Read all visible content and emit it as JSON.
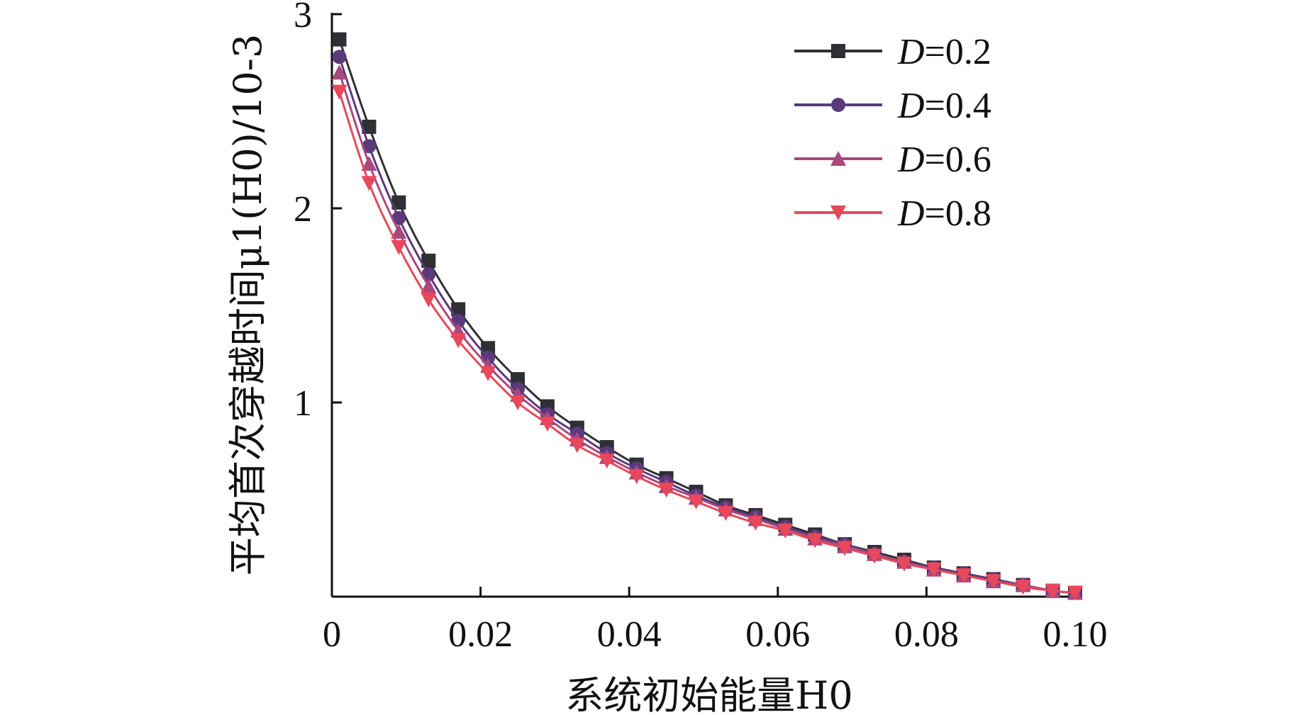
{
  "chart_data": {
    "type": "line",
    "xlabel": "系统初始能量H0",
    "ylabel": "平均首次穿越时间μ1(H0)/10-3",
    "xlim": [
      0,
      0.1
    ],
    "ylim": [
      0,
      3
    ],
    "x_ticks": [
      "0",
      "0.02",
      "0.04",
      "0.06",
      "0.08",
      "0.10"
    ],
    "y_ticks": [
      "1",
      "2",
      "3"
    ],
    "legend_position": "top-right",
    "grid": false,
    "x": [
      0.001,
      0.005,
      0.009,
      0.013,
      0.017,
      0.021,
      0.025,
      0.029,
      0.033,
      0.037,
      0.041,
      0.045,
      0.049,
      0.053,
      0.057,
      0.061,
      0.065,
      0.069,
      0.073,
      0.077,
      0.081,
      0.085,
      0.089,
      0.093,
      0.097,
      0.1
    ],
    "series": [
      {
        "name": "D=0.2",
        "legend_var": "D",
        "legend_value": "=0.2",
        "color": "#2f2f36",
        "marker": "square",
        "values": [
          2.87,
          2.42,
          2.03,
          1.73,
          1.48,
          1.28,
          1.12,
          0.98,
          0.87,
          0.77,
          0.68,
          0.61,
          0.54,
          0.47,
          0.42,
          0.37,
          0.32,
          0.27,
          0.23,
          0.19,
          0.15,
          0.12,
          0.09,
          0.06,
          0.03,
          0.02
        ]
      },
      {
        "name": "D=0.4",
        "legend_var": "D",
        "legend_value": "=0.4",
        "color": "#5b3a7c",
        "marker": "circle",
        "values": [
          2.78,
          2.32,
          1.95,
          1.66,
          1.42,
          1.23,
          1.07,
          0.94,
          0.84,
          0.74,
          0.66,
          0.59,
          0.52,
          0.46,
          0.41,
          0.36,
          0.31,
          0.27,
          0.22,
          0.18,
          0.15,
          0.12,
          0.09,
          0.06,
          0.03,
          0.02
        ]
      },
      {
        "name": "D=0.6",
        "legend_var": "D",
        "legend_value": "=0.6",
        "color": "#a8487e",
        "marker": "triangle-up",
        "values": [
          2.7,
          2.23,
          1.88,
          1.6,
          1.37,
          1.19,
          1.04,
          0.92,
          0.81,
          0.72,
          0.64,
          0.57,
          0.51,
          0.45,
          0.4,
          0.35,
          0.3,
          0.26,
          0.22,
          0.18,
          0.14,
          0.11,
          0.08,
          0.06,
          0.03,
          0.02
        ]
      },
      {
        "name": "D=0.8",
        "legend_var": "D",
        "legend_value": "=0.8",
        "color": "#e8485a",
        "marker": "triangle-down",
        "values": [
          2.6,
          2.13,
          1.8,
          1.53,
          1.32,
          1.15,
          1.0,
          0.89,
          0.78,
          0.7,
          0.62,
          0.55,
          0.49,
          0.43,
          0.38,
          0.34,
          0.29,
          0.25,
          0.21,
          0.17,
          0.14,
          0.11,
          0.08,
          0.05,
          0.03,
          0.02
        ]
      }
    ]
  }
}
